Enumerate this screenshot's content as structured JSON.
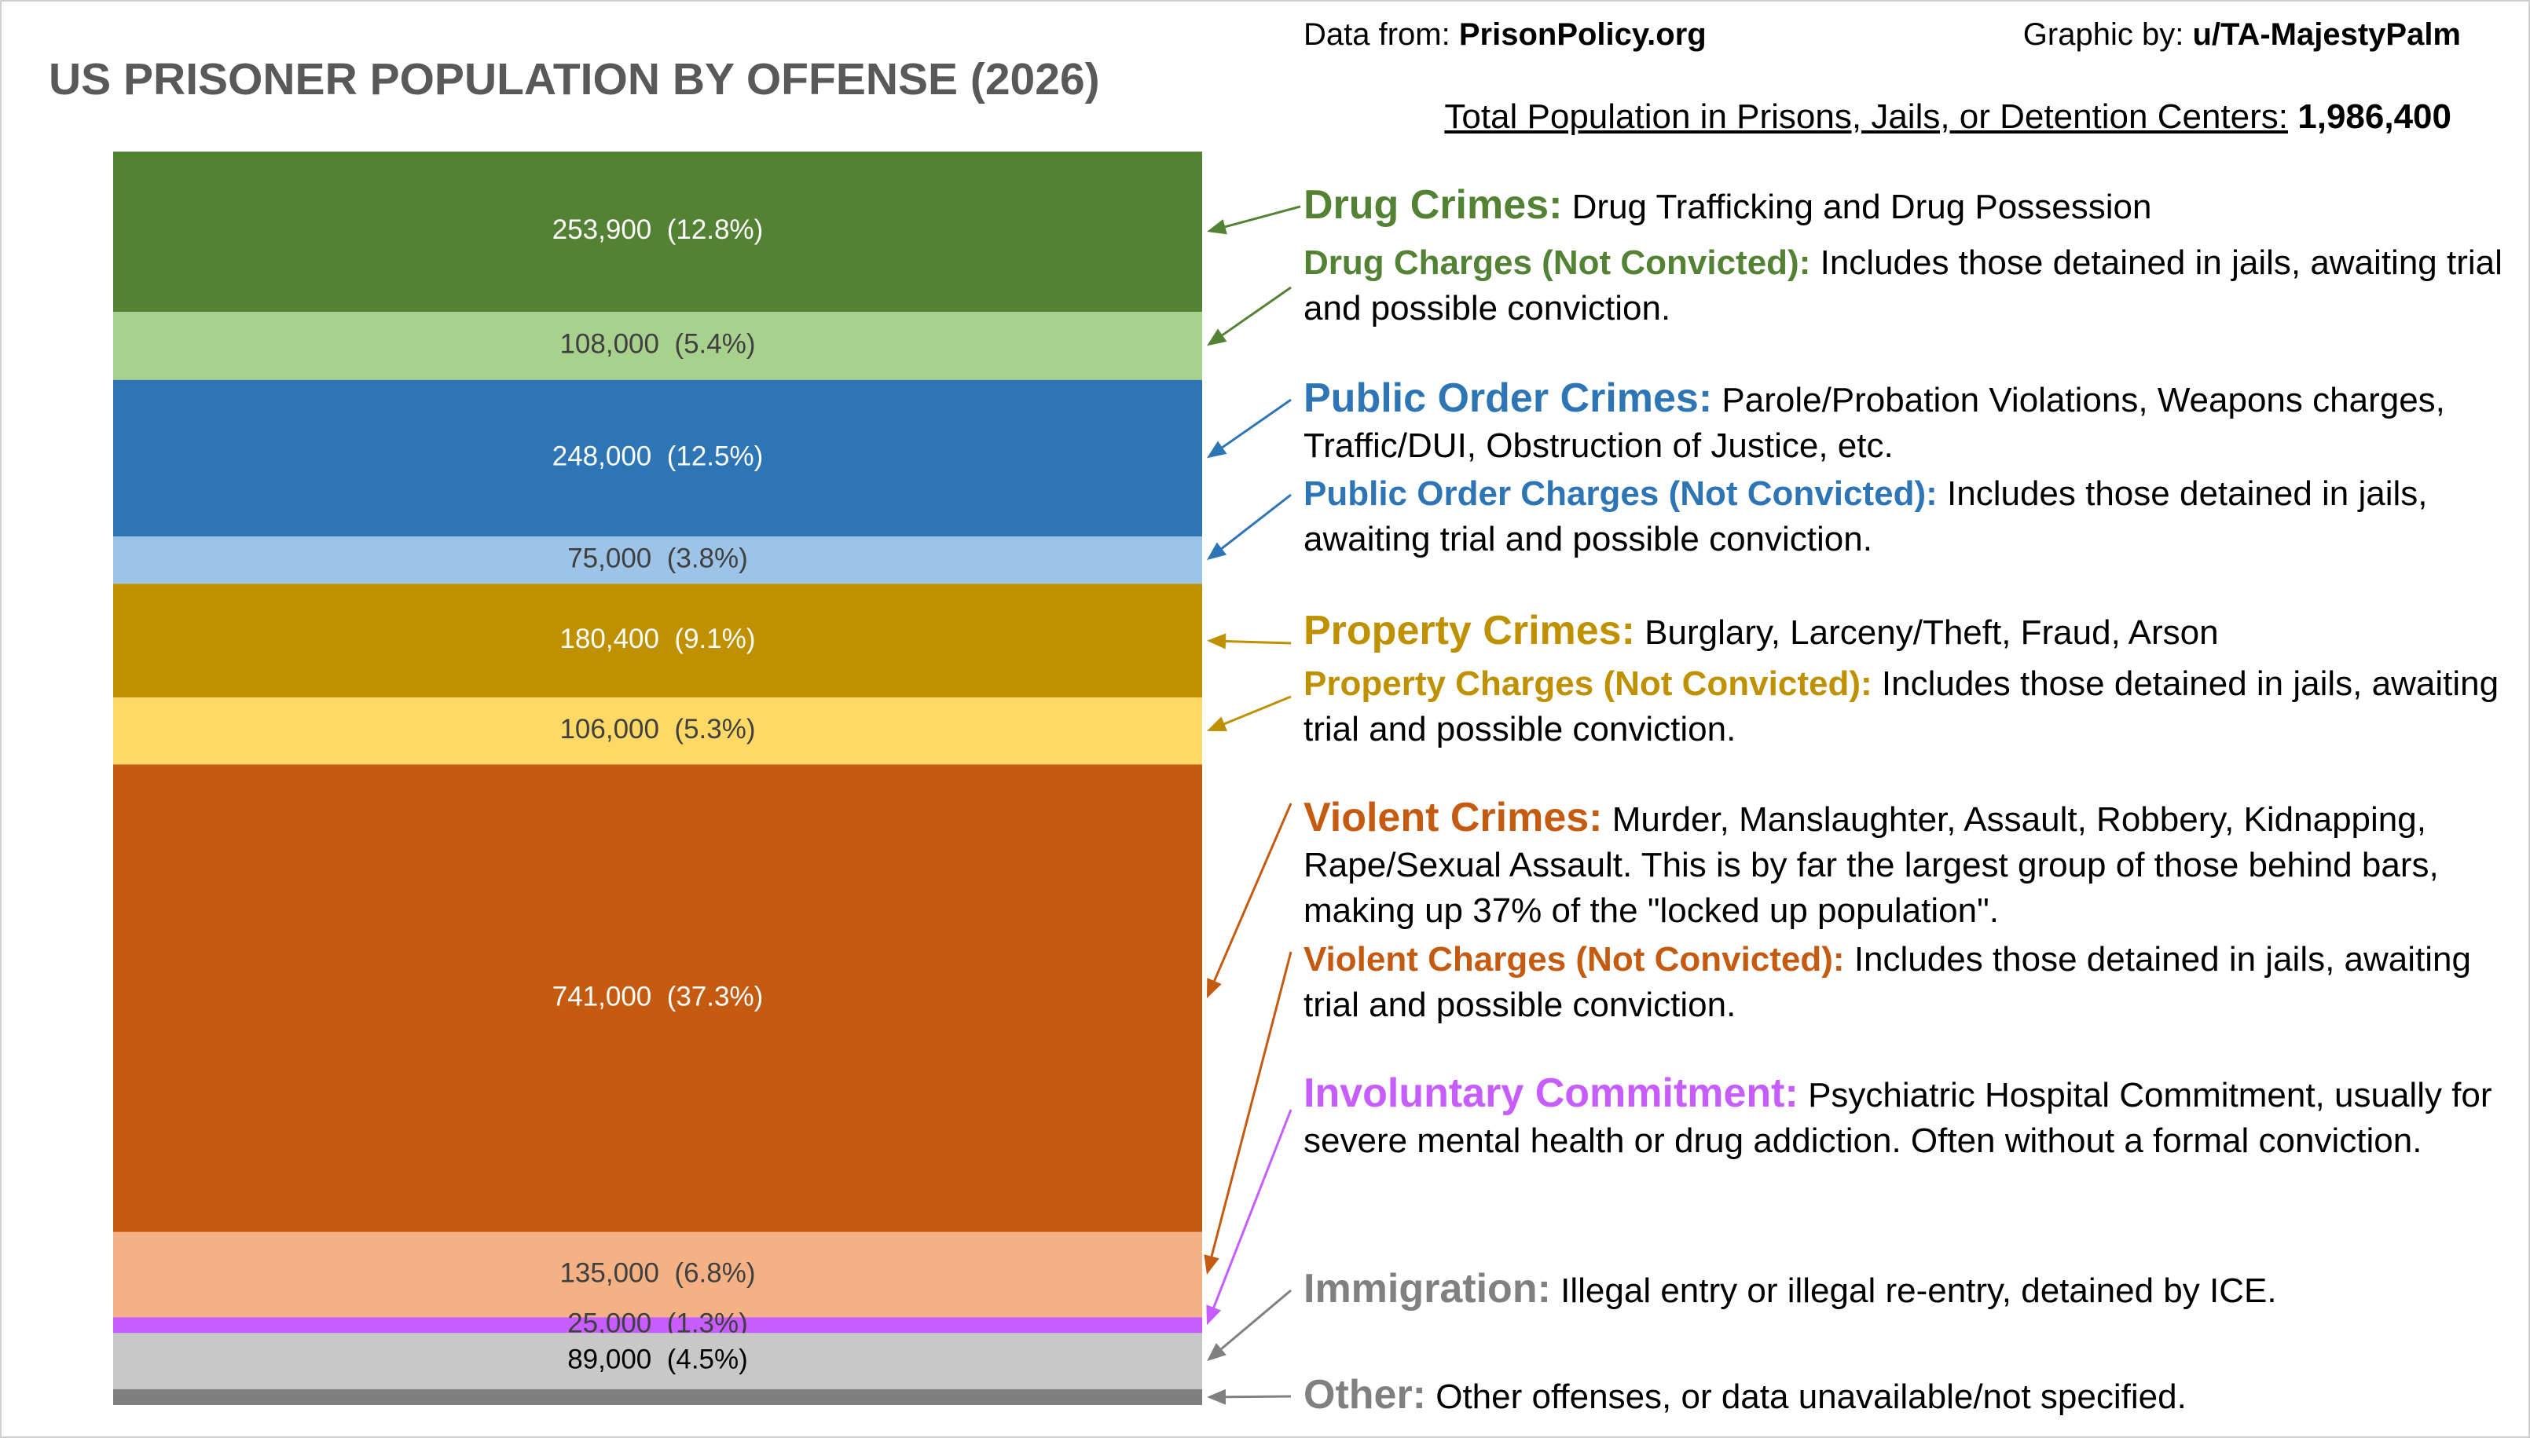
{
  "chart_data": {
    "type": "stacked_bar",
    "title": "US PRISONER POPULATION BY OFFENSE (2026)",
    "source_label": "Data from:",
    "source": "PrisonPolicy.org",
    "credit_label": "Graphic by:",
    "credit": "u/TA-MajestyPalm",
    "total": {
      "text": "Total Population in Prisons, Jails, or Detention Centers:",
      "value": 1986400,
      "value_label": "1,986,400"
    },
    "series": [
      {
        "name": "Drug Crimes:",
        "description": "Drug Trafficking and Drug Possession",
        "color": "#548235",
        "heading_color": "#548235",
        "text_color": "#ffffff",
        "values": [
          253900
        ],
        "value_labels": [
          "253,900  (12.8%)"
        ]
      },
      {
        "name": "Drug Charges (Not Convicted):",
        "description": "Includes those detained in jails, awaiting trial and possible conviction.",
        "color": "#a9d18e",
        "heading_color": "#548235",
        "text_color": "#404040",
        "values": [
          108000
        ],
        "value_labels": [
          "108,000  (5.4%)"
        ]
      },
      {
        "name": "Public Order Crimes:",
        "description": "Parole/Probation Violations, Weapons charges, Traffic/DUI, Obstruction of Justice, etc.",
        "color": "#2e75b6",
        "heading_color": "#2e75b6",
        "text_color": "#ffffff",
        "values": [
          248000
        ],
        "value_labels": [
          "248,000  (12.5%)"
        ]
      },
      {
        "name": "Public Order Charges (Not Convicted):",
        "description": "Includes those detained in jails, awaiting trial and possible conviction.",
        "color": "#9dc3e6",
        "heading_color": "#2e75b6",
        "text_color": "#404040",
        "values": [
          75000
        ],
        "value_labels": [
          "75,000  (3.8%)"
        ]
      },
      {
        "name": "Property Crimes:",
        "description": "Burglary, Larceny/Theft, Fraud, Arson",
        "color": "#bf9000",
        "heading_color": "#bf9000",
        "text_color": "#ffffff",
        "values": [
          180400
        ],
        "value_labels": [
          "180,400  (9.1%)"
        ]
      },
      {
        "name": "Property Charges (Not Convicted):",
        "description": "Includes those detained in jails, awaiting trial and possible conviction.",
        "color": "#ffd966",
        "heading_color": "#bf9000",
        "text_color": "#404040",
        "values": [
          106000
        ],
        "value_labels": [
          "106,000  (5.3%)"
        ]
      },
      {
        "name": "Violent Crimes:",
        "description": "Murder, Manslaughter, Assault, Robbery, Kidnapping, Rape/Sexual Assault. This is by far the largest group of those behind bars, making up 37% of the \"locked up population\".",
        "color": "#c55a11",
        "heading_color": "#c55a11",
        "text_color": "#ffffff",
        "values": [
          741000
        ],
        "value_labels": [
          "741,000  (37.3%)"
        ]
      },
      {
        "name": "Violent Charges (Not Convicted):",
        "description": "Includes those detained in jails, awaiting trial and possible conviction.",
        "color": "#f4b183",
        "heading_color": "#c55a11",
        "text_color": "#404040",
        "values": [
          135000
        ],
        "value_labels": [
          "135,000  (6.8%)"
        ]
      },
      {
        "name": "Involuntary Commitment:",
        "description": "Psychiatric Hospital Commitment, usually for severe mental health or drug addiction. Often without a formal conviction.",
        "color": "#c75cff",
        "heading_color": "#c75cff",
        "text_color": "#404040",
        "values": [
          25000
        ],
        "value_labels": [
          "25,000  (1.3%)"
        ]
      },
      {
        "name": "Immigration:",
        "description": "Illegal entry or illegal re-entry, detained by ICE.",
        "color": "#c8c8c8",
        "heading_color": "#808080",
        "text_color": "#000000",
        "values": [
          89000
        ],
        "value_labels": [
          "89,000  (4.5%)"
        ]
      },
      {
        "name": "Other:",
        "description": "Other offenses, or data unavailable/not specified.",
        "color": "#7f7f7f",
        "heading_color": "#808080",
        "text_color": "#000000",
        "values": [
          25100
        ]
      }
    ]
  }
}
